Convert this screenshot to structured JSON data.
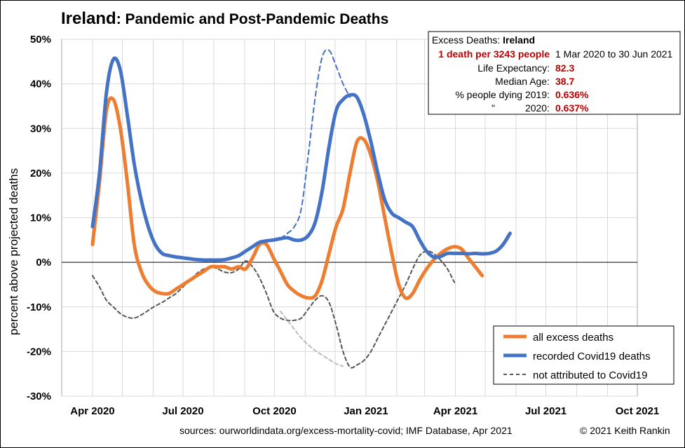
{
  "chart_data": {
    "type": "line",
    "title_bold": "Ireland",
    "title_rest": ": Pandemic and Post-Pandemic Deaths",
    "ylabel": "percent above projected deaths",
    "ylim": [
      -30,
      50
    ],
    "grid": true,
    "y_ticks": [
      {
        "v": 50,
        "label": "50%"
      },
      {
        "v": 40,
        "label": "40%"
      },
      {
        "v": 30,
        "label": "30%"
      },
      {
        "v": 20,
        "label": "20%"
      },
      {
        "v": 10,
        "label": "10%"
      },
      {
        "v": 0,
        "label": "0%"
      },
      {
        "v": -10,
        "label": "-10%"
      },
      {
        "v": -20,
        "label": "-20%"
      },
      {
        "v": -30,
        "label": "-30%"
      }
    ],
    "x_ticks": [
      {
        "date": "2020-04-01",
        "label": "Apr 2020"
      },
      {
        "date": "2020-07-01",
        "label": "Jul 2020"
      },
      {
        "date": "2020-10-01",
        "label": "Oct 2020"
      },
      {
        "date": "2021-01-01",
        "label": "Jan 2021"
      },
      {
        "date": "2021-04-01",
        "label": "Apr 2021"
      },
      {
        "date": "2021-07-01",
        "label": "Jul 2021"
      },
      {
        "date": "2021-10-01",
        "label": "Oct 2021"
      }
    ],
    "series": [
      {
        "name": "all excess deaths",
        "color": "#ED7D31",
        "style": "solid",
        "points": [
          [
            "2020-04-01",
            4
          ],
          [
            "2020-04-08",
            18
          ],
          [
            "2020-04-15",
            34
          ],
          [
            "2020-04-22",
            36.5
          ],
          [
            "2020-04-29",
            30
          ],
          [
            "2020-05-06",
            18
          ],
          [
            "2020-05-13",
            4
          ],
          [
            "2020-05-20",
            -2
          ],
          [
            "2020-05-27",
            -5
          ],
          [
            "2020-06-03",
            -6.5
          ],
          [
            "2020-06-10",
            -7
          ],
          [
            "2020-06-17",
            -7
          ],
          [
            "2020-06-24",
            -6
          ],
          [
            "2020-07-01",
            -5
          ],
          [
            "2020-07-08",
            -4
          ],
          [
            "2020-07-15",
            -3
          ],
          [
            "2020-07-22",
            -2
          ],
          [
            "2020-07-29",
            -1
          ],
          [
            "2020-08-05",
            -1
          ],
          [
            "2020-08-12",
            -1
          ],
          [
            "2020-08-19",
            -1.5
          ],
          [
            "2020-08-26",
            -1
          ],
          [
            "2020-09-02",
            -1.5
          ],
          [
            "2020-09-09",
            1
          ],
          [
            "2020-09-16",
            4
          ],
          [
            "2020-09-23",
            4
          ],
          [
            "2020-09-30",
            1
          ],
          [
            "2020-10-07",
            -2
          ],
          [
            "2020-10-14",
            -5
          ],
          [
            "2020-10-21",
            -6.5
          ],
          [
            "2020-10-28",
            -7.5
          ],
          [
            "2020-11-04",
            -8
          ],
          [
            "2020-11-11",
            -7.5
          ],
          [
            "2020-11-18",
            -4
          ],
          [
            "2020-11-25",
            2
          ],
          [
            "2020-12-02",
            8
          ],
          [
            "2020-12-09",
            12
          ],
          [
            "2020-12-16",
            20
          ],
          [
            "2020-12-23",
            27
          ],
          [
            "2020-12-30",
            27.5
          ],
          [
            "2021-01-06",
            24
          ],
          [
            "2021-01-13",
            18
          ],
          [
            "2021-01-20",
            10
          ],
          [
            "2021-01-27",
            2
          ],
          [
            "2021-02-03",
            -5
          ],
          [
            "2021-02-10",
            -8
          ],
          [
            "2021-02-17",
            -7
          ],
          [
            "2021-02-24",
            -4
          ],
          [
            "2021-03-03",
            -1.5
          ],
          [
            "2021-03-10",
            0.5
          ],
          [
            "2021-03-17",
            2
          ],
          [
            "2021-03-24",
            3
          ],
          [
            "2021-03-31",
            3.5
          ],
          [
            "2021-04-07",
            3
          ],
          [
            "2021-04-14",
            1
          ],
          [
            "2021-04-21",
            -1
          ],
          [
            "2021-04-28",
            -3
          ]
        ]
      },
      {
        "name": "recorded Covid19 deaths",
        "color": "#4472C4",
        "style": "solid",
        "points": [
          [
            "2020-04-01",
            8
          ],
          [
            "2020-04-08",
            20
          ],
          [
            "2020-04-15",
            38
          ],
          [
            "2020-04-22",
            45.5
          ],
          [
            "2020-04-29",
            43
          ],
          [
            "2020-05-06",
            33
          ],
          [
            "2020-05-13",
            22
          ],
          [
            "2020-05-20",
            14
          ],
          [
            "2020-05-27",
            8
          ],
          [
            "2020-06-03",
            4
          ],
          [
            "2020-06-10",
            2
          ],
          [
            "2020-06-17",
            1.5
          ],
          [
            "2020-06-24",
            1.2
          ],
          [
            "2020-07-01",
            1
          ],
          [
            "2020-07-08",
            0.8
          ],
          [
            "2020-07-15",
            0.6
          ],
          [
            "2020-07-22",
            0.5
          ],
          [
            "2020-07-29",
            0.5
          ],
          [
            "2020-08-05",
            0.5
          ],
          [
            "2020-08-12",
            0.6
          ],
          [
            "2020-08-19",
            1
          ],
          [
            "2020-08-26",
            1.5
          ],
          [
            "2020-09-02",
            2.5
          ],
          [
            "2020-09-09",
            3.5
          ],
          [
            "2020-09-16",
            4.5
          ],
          [
            "2020-09-23",
            4.8
          ],
          [
            "2020-09-30",
            5
          ],
          [
            "2020-10-07",
            5.3
          ],
          [
            "2020-10-14",
            5.5
          ],
          [
            "2020-10-21",
            5
          ],
          [
            "2020-10-28",
            5
          ],
          [
            "2020-11-04",
            6
          ],
          [
            "2020-11-11",
            9
          ],
          [
            "2020-11-18",
            16
          ],
          [
            "2020-11-25",
            26
          ],
          [
            "2020-12-02",
            34
          ],
          [
            "2020-12-09",
            36.5
          ],
          [
            "2020-12-16",
            37.5
          ],
          [
            "2020-12-23",
            37
          ],
          [
            "2020-12-30",
            33
          ],
          [
            "2021-01-06",
            27
          ],
          [
            "2021-01-13",
            20
          ],
          [
            "2021-01-20",
            14
          ],
          [
            "2021-01-27",
            11
          ],
          [
            "2021-02-03",
            10
          ],
          [
            "2021-02-10",
            9
          ],
          [
            "2021-02-17",
            8
          ],
          [
            "2021-02-24",
            5
          ],
          [
            "2021-03-03",
            2.5
          ],
          [
            "2021-03-10",
            1.2
          ],
          [
            "2021-03-17",
            1.3
          ],
          [
            "2021-03-24",
            2
          ],
          [
            "2021-03-31",
            2
          ],
          [
            "2021-04-07",
            2
          ],
          [
            "2021-04-14",
            1.9
          ],
          [
            "2021-04-21",
            2
          ],
          [
            "2021-04-28",
            1.9
          ],
          [
            "2021-05-05",
            2
          ],
          [
            "2021-05-12",
            2.5
          ],
          [
            "2021-05-19",
            4
          ],
          [
            "2021-05-26",
            6.5
          ]
        ]
      },
      {
        "name": "not attributed to Covid19",
        "color": "#555555",
        "style": "dashed",
        "points": [
          [
            "2020-04-01",
            -3
          ],
          [
            "2020-04-08",
            -5.5
          ],
          [
            "2020-04-15",
            -8.5
          ],
          [
            "2020-04-22",
            -10
          ],
          [
            "2020-04-29",
            -11.5
          ],
          [
            "2020-05-06",
            -12.3
          ],
          [
            "2020-05-13",
            -12.5
          ],
          [
            "2020-05-20",
            -11.8
          ],
          [
            "2020-05-27",
            -10.8
          ],
          [
            "2020-06-03",
            -9.8
          ],
          [
            "2020-06-10",
            -9
          ],
          [
            "2020-06-17",
            -8
          ],
          [
            "2020-06-24",
            -7
          ],
          [
            "2020-07-01",
            -5.5
          ],
          [
            "2020-07-08",
            -4
          ],
          [
            "2020-07-15",
            -2.5
          ],
          [
            "2020-07-22",
            -1.5
          ],
          [
            "2020-07-29",
            -1
          ],
          [
            "2020-08-05",
            -1.5
          ],
          [
            "2020-08-12",
            -2.2
          ],
          [
            "2020-08-19",
            -2.3
          ],
          [
            "2020-08-26",
            -1.5
          ],
          [
            "2020-09-02",
            0.3
          ],
          [
            "2020-09-09",
            -1
          ],
          [
            "2020-09-16",
            -3.5
          ],
          [
            "2020-09-23",
            -7
          ],
          [
            "2020-09-30",
            -11
          ],
          [
            "2020-10-07",
            -12.5
          ],
          [
            "2020-10-14",
            -13
          ],
          [
            "2020-10-21",
            -13
          ],
          [
            "2020-10-28",
            -12.5
          ],
          [
            "2020-11-04",
            -10.5
          ],
          [
            "2020-11-11",
            -8.5
          ],
          [
            "2020-11-18",
            -7.5
          ],
          [
            "2020-11-25",
            -9
          ],
          [
            "2020-12-02",
            -14
          ],
          [
            "2020-12-09",
            -20
          ],
          [
            "2020-12-16",
            -23.5
          ],
          [
            "2020-12-23",
            -23
          ],
          [
            "2020-12-30",
            -22
          ],
          [
            "2021-01-06",
            -20
          ],
          [
            "2021-01-13",
            -17
          ],
          [
            "2021-01-20",
            -14
          ],
          [
            "2021-01-27",
            -11
          ],
          [
            "2021-02-03",
            -8
          ],
          [
            "2021-02-10",
            -5
          ],
          [
            "2021-02-17",
            -1.5
          ],
          [
            "2021-02-24",
            1.5
          ],
          [
            "2021-03-03",
            2.5
          ],
          [
            "2021-03-10",
            2
          ],
          [
            "2021-03-17",
            0.5
          ],
          [
            "2021-03-24",
            -1.5
          ],
          [
            "2021-03-31",
            -4.5
          ]
        ]
      },
      {
        "name": "",
        "color": "#4472C4",
        "style": "dashed",
        "legend": false,
        "points": [
          [
            "2020-10-07",
            5.3
          ],
          [
            "2020-10-14",
            6.5
          ],
          [
            "2020-10-21",
            8
          ],
          [
            "2020-10-28",
            12
          ],
          [
            "2020-11-04",
            24
          ],
          [
            "2020-11-11",
            37
          ],
          [
            "2020-11-18",
            46
          ],
          [
            "2020-11-25",
            47.5
          ],
          [
            "2020-12-02",
            44
          ],
          [
            "2020-12-09",
            40
          ],
          [
            "2020-12-16",
            37
          ]
        ]
      },
      {
        "name": "",
        "color": "#BBBBBB",
        "style": "dashed",
        "legend": false,
        "points": [
          [
            "2020-10-07",
            -11
          ],
          [
            "2020-10-14",
            -13
          ],
          [
            "2020-10-21",
            -15
          ],
          [
            "2020-10-28",
            -17
          ],
          [
            "2020-11-04",
            -18.5
          ],
          [
            "2020-11-11",
            -19.8
          ],
          [
            "2020-11-18",
            -20.8
          ],
          [
            "2020-11-25",
            -21.8
          ],
          [
            "2020-12-02",
            -22.7
          ],
          [
            "2020-12-09",
            -23.3
          ]
        ]
      }
    ],
    "legend": {
      "position": "bottom-right",
      "items": [
        {
          "label": "all excess deaths",
          "color": "#ED7D31",
          "style": "solid"
        },
        {
          "label": "recorded Covid19 deaths",
          "color": "#4472C4",
          "style": "solid"
        },
        {
          "label": "not attributed to Covid19",
          "color": "#555555",
          "style": "dashed"
        }
      ]
    },
    "info_box": {
      "position": "top-right",
      "heading_prefix": "Excess Deaths: ",
      "heading_country": "Ireland",
      "rate": "1 death per 3243 people",
      "period": "1 Mar 2020 to 30 Jun 2021",
      "rows": [
        {
          "label": "Life Expectancy:",
          "value": "82.3"
        },
        {
          "label": "Median Age:",
          "value": "38.7"
        },
        {
          "label": "% people dying 2019:",
          "value": "0.636%"
        },
        {
          "label": "\"",
          "label2": "2020:",
          "value": "0.637%"
        }
      ]
    },
    "footer": {
      "sources": "sources:  ourworldindata.org/excess-mortality-covid;  IMF Database, Apr 2021",
      "copyright": "© 2021 Keith Rankin"
    }
  }
}
